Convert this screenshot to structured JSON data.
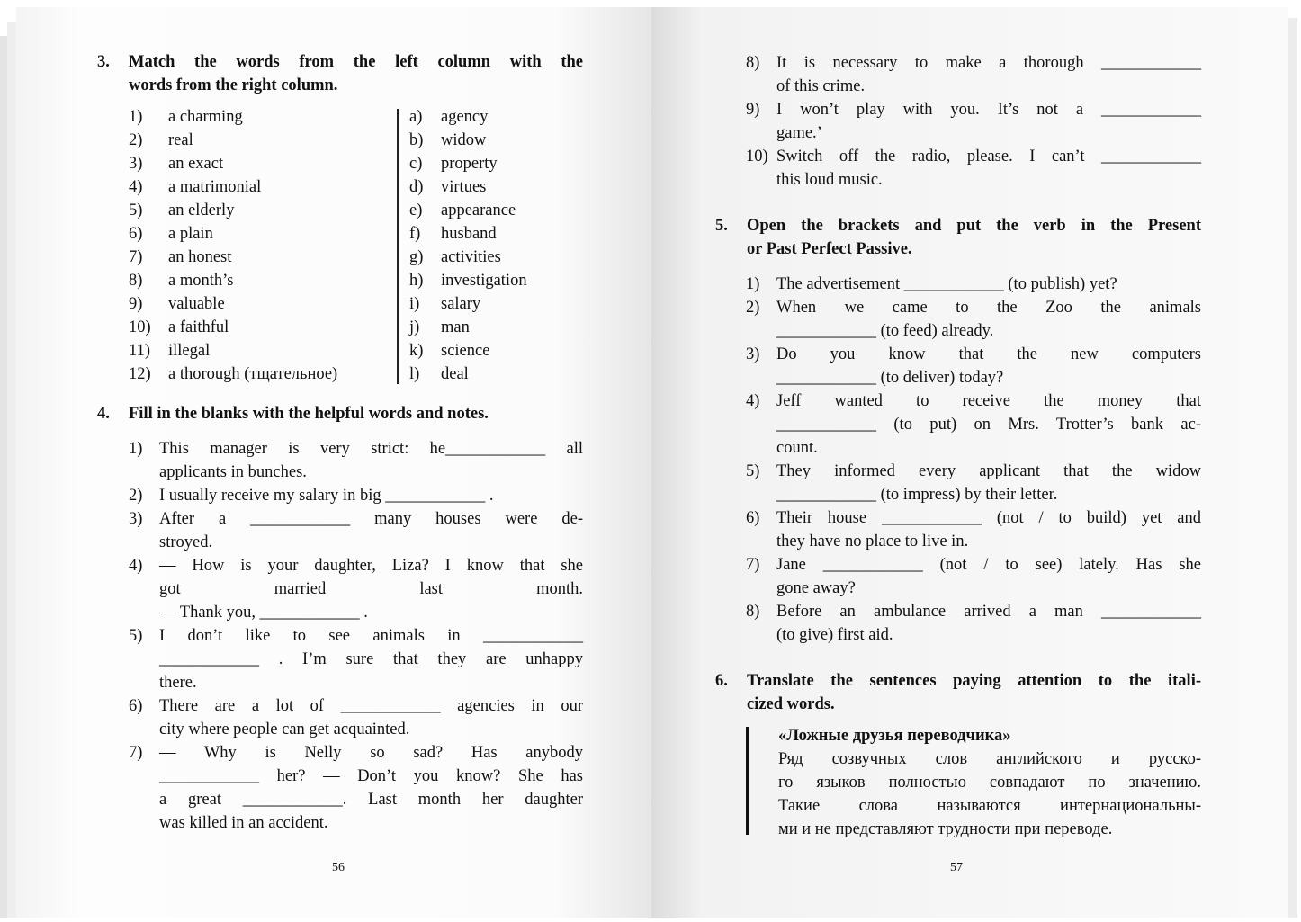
{
  "left_page": {
    "page_number": "56",
    "ex3": {
      "number": "3.",
      "title_lines": [
        "Match the words from the left column with the",
        "words from the right column."
      ],
      "left_column": [
        {
          "n": "1)",
          "w": "a charming"
        },
        {
          "n": "2)",
          "w": "real"
        },
        {
          "n": "3)",
          "w": "an exact"
        },
        {
          "n": "4)",
          "w": "a matrimonial"
        },
        {
          "n": "5)",
          "w": "an elderly"
        },
        {
          "n": "6)",
          "w": "a plain"
        },
        {
          "n": "7)",
          "w": "an honest"
        },
        {
          "n": "8)",
          "w": "a month’s"
        },
        {
          "n": "9)",
          "w": "valuable"
        },
        {
          "n": "10)",
          "w": "a faithful"
        },
        {
          "n": "11)",
          "w": "illegal"
        },
        {
          "n": "12)",
          "w": "a thorough (тщательное)"
        }
      ],
      "right_column": [
        {
          "n": "a)",
          "w": "agency"
        },
        {
          "n": "b)",
          "w": "widow"
        },
        {
          "n": "c)",
          "w": "property"
        },
        {
          "n": "d)",
          "w": "virtues"
        },
        {
          "n": "e)",
          "w": "appearance"
        },
        {
          "n": "f)",
          "w": "husband"
        },
        {
          "n": "g)",
          "w": "activities"
        },
        {
          "n": "h)",
          "w": "investigation"
        },
        {
          "n": "i)",
          "w": "salary"
        },
        {
          "n": "j)",
          "w": "man"
        },
        {
          "n": "k)",
          "w": "science"
        },
        {
          "n": "l)",
          "w": "deal"
        }
      ]
    },
    "ex4": {
      "number": "4.",
      "title_lines": [
        "Fill in the blanks with the helpful words and notes."
      ],
      "items": [
        {
          "n": "1)",
          "lines": [
            "This manager is very strict: he____________ all",
            "applicants in bunches."
          ]
        },
        {
          "n": "2)",
          "lines": [
            "I usually receive my salary in big ____________ ."
          ]
        },
        {
          "n": "3)",
          "lines": [
            "After a ____________ many houses were de-",
            "stroyed."
          ]
        },
        {
          "n": "4)",
          "lines": [
            "— How is your daughter, Liza? I know that she",
            "got married last month.",
            "— Thank you, ____________ ."
          ]
        },
        {
          "n": "5)",
          "lines": [
            "I don’t like to see animals in ____________",
            "____________ . I’m sure that they are unhappy",
            "there."
          ]
        },
        {
          "n": "6)",
          "lines": [
            "There are a lot of ____________ agencies in our",
            "city where people can get acquainted."
          ]
        },
        {
          "n": "7)",
          "lines": [
            "— Why is Nelly so sad? Has anybody",
            "____________ her? — Don’t you know? She has",
            "a great ____________. Last month her daughter",
            "was killed in an accident."
          ]
        }
      ]
    }
  },
  "right_page": {
    "page_number": "57",
    "ex4_cont": {
      "items": [
        {
          "n": "8)",
          "lines": [
            "It is necessary to make a thorough ____________",
            "of this crime."
          ]
        },
        {
          "n": "9)",
          "lines": [
            "I won’t play with you. It’s not a ____________",
            "game.’"
          ]
        },
        {
          "n": "10)",
          "lines": [
            "Switch off the radio, please. I can’t ____________",
            "this loud music."
          ]
        }
      ]
    },
    "ex5": {
      "number": "5.",
      "title_lines": [
        "Open the brackets and put the verb in the Present",
        "or Past Perfect Passive."
      ],
      "items": [
        {
          "n": "1)",
          "lines": [
            "The advertisement ____________ (to publish) yet?"
          ]
        },
        {
          "n": "2)",
          "lines": [
            "When we came to the Zoo the animals",
            "____________ (to feed) already."
          ]
        },
        {
          "n": "3)",
          "lines": [
            "Do you know that the new computers",
            "____________ (to deliver) today?"
          ]
        },
        {
          "n": "4)",
          "lines": [
            "Jeff wanted to receive the money that",
            "____________ (to put) on Mrs. Trotter’s bank ac-",
            "count."
          ]
        },
        {
          "n": "5)",
          "lines": [
            "They informed every applicant that the widow",
            "____________ (to impress) by their letter."
          ]
        },
        {
          "n": "6)",
          "lines": [
            "Their house ____________ (not / to build) yet and",
            "they have no place to live in."
          ]
        },
        {
          "n": "7)",
          "lines": [
            "Jane ____________ (not / to see) lately. Has she",
            "gone away?"
          ]
        },
        {
          "n": "8)",
          "lines": [
            "Before an ambulance arrived a man ____________",
            "(to give) first aid."
          ]
        }
      ]
    },
    "ex6": {
      "number": "6.",
      "title_lines": [
        "Translate the sentences paying attention to the itali-",
        "cized words."
      ],
      "note": {
        "heading": "«Ложные друзья переводчика»",
        "lines": [
          "Ряд созвучных слов английского и русско-",
          "го языков полностью совпадают по значению.",
          "Такие слова называются интернациональны-",
          "ми и не представляют трудности при переводе."
        ]
      }
    }
  }
}
